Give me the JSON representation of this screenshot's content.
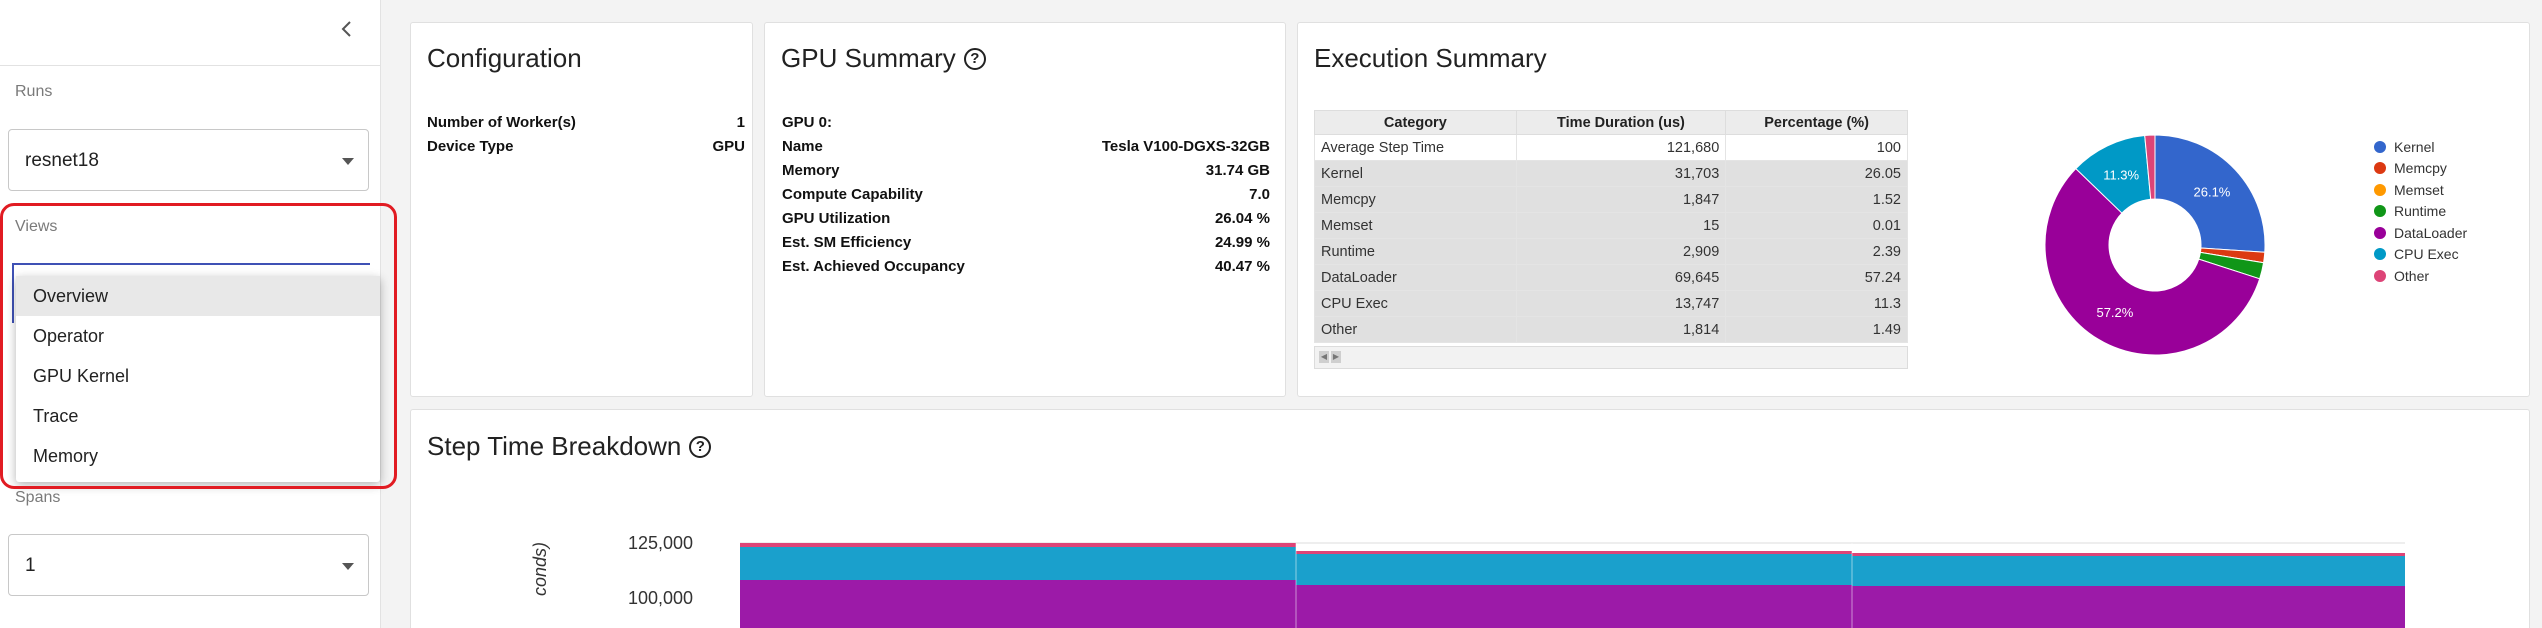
{
  "sidebar": {
    "runs_label": "Runs",
    "runs_value": "resnet18",
    "views_label": "Views",
    "spans_label": "Spans",
    "spans_value": "1",
    "views_options": [
      "Overview",
      "Operator",
      "GPU Kernel",
      "Trace",
      "Memory"
    ],
    "selected_view": "Overview"
  },
  "configuration": {
    "title": "Configuration",
    "rows": [
      {
        "key": "Number of Worker(s)",
        "value": "1"
      },
      {
        "key": "Device Type",
        "value": "GPU"
      }
    ]
  },
  "gpu_summary": {
    "title": "GPU Summary",
    "gpu_header": "GPU 0:",
    "rows": [
      {
        "key": "Name",
        "value": "Tesla V100-DGXS-32GB"
      },
      {
        "key": "Memory",
        "value": "31.74 GB"
      },
      {
        "key": "Compute Capability",
        "value": "7.0"
      },
      {
        "key": "GPU Utilization",
        "value": "26.04 %"
      },
      {
        "key": "Est. SM Efficiency",
        "value": "24.99 %"
      },
      {
        "key": "Est. Achieved Occupancy",
        "value": "40.47 %"
      }
    ]
  },
  "execution_summary": {
    "title": "Execution Summary",
    "columns": [
      "Category",
      "Time Duration (us)",
      "Percentage (%)"
    ],
    "rows": [
      {
        "category": "Average Step Time",
        "duration": "121,680",
        "percentage": "100"
      },
      {
        "category": "Kernel",
        "duration": "31,703",
        "percentage": "26.05"
      },
      {
        "category": "Memcpy",
        "duration": "1,847",
        "percentage": "1.52"
      },
      {
        "category": "Memset",
        "duration": "15",
        "percentage": "0.01"
      },
      {
        "category": "Runtime",
        "duration": "2,909",
        "percentage": "2.39"
      },
      {
        "category": "DataLoader",
        "duration": "69,645",
        "percentage": "57.24"
      },
      {
        "category": "CPU Exec",
        "duration": "13,747",
        "percentage": "11.3"
      },
      {
        "category": "Other",
        "duration": "1,814",
        "percentage": "1.49"
      }
    ],
    "legend": [
      {
        "name": "Kernel",
        "color": "#3366cc"
      },
      {
        "name": "Memcpy",
        "color": "#dc3912"
      },
      {
        "name": "Memset",
        "color": "#ff9900"
      },
      {
        "name": "Runtime",
        "color": "#109618"
      },
      {
        "name": "DataLoader",
        "color": "#990099"
      },
      {
        "name": "CPU Exec",
        "color": "#0099c6"
      },
      {
        "name": "Other",
        "color": "#dd4477"
      }
    ],
    "pie_labels": {
      "Kernel": "26.1%",
      "DataLoader": "57.2%",
      "CPU Exec": "11.3%"
    }
  },
  "step_time": {
    "title": "Step Time Breakdown",
    "ylabel": "conds)",
    "chart_data": {
      "type": "area",
      "series_colors": {
        "DataLoader": "#9c1aa8",
        "CPU Exec": "#1aa0cc",
        "Other": "#dd4477"
      },
      "y_ticks": [
        "125,000",
        "100,000"
      ]
    }
  },
  "chart_data": {
    "type": "pie",
    "categories": [
      "Kernel",
      "Memcpy",
      "Memset",
      "Runtime",
      "DataLoader",
      "CPU Exec",
      "Other"
    ],
    "values": [
      26.05,
      1.52,
      0.01,
      2.39,
      57.24,
      11.3,
      1.49
    ],
    "colors": [
      "#3366cc",
      "#dc3912",
      "#ff9900",
      "#109618",
      "#990099",
      "#0099c6",
      "#dd4477"
    ],
    "donut": true
  }
}
